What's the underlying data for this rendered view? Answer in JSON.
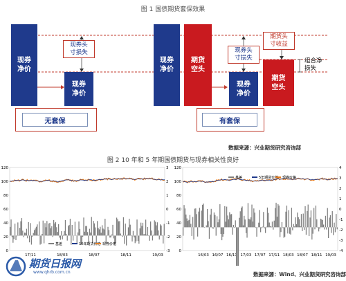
{
  "fig1": {
    "title": "图 1  国债期货套保效果",
    "boxes": {
      "spot_net_left": "现券\n净价",
      "spot_net_left_small": "现券\n净价",
      "spot_net_right": "现券\n净价",
      "futures_short": "期货\n空头",
      "spot_net_right_small": "现券\n净价",
      "futures_short_small": "期货\n空头"
    },
    "labels": {
      "loss_left": "现券头\n寸损失",
      "loss_right": "现券头\n寸损失",
      "gain": "期货头\n寸收益",
      "portfolio_loss": "组合净\n损失"
    },
    "frames": {
      "no_hedge": "无套保",
      "with_hedge": "有套保"
    },
    "source": "数据来源：兴业期货研究咨询部"
  },
  "fig2": {
    "title": "图 2  10 年和 5 年期国债期货与现券相关性良好",
    "source": "数据来源：Wind、兴业期货研究咨询部",
    "left": {
      "y_left_ticks": [
        "120",
        "100",
        "80",
        "60",
        "40",
        "20",
        "0"
      ],
      "y_right_ticks": [
        "3",
        "2",
        "1",
        "0",
        "-1",
        "-2",
        "-3"
      ],
      "x_ticks": [
        "17/11",
        "18/03",
        "18/07",
        "18/11",
        "19/03"
      ],
      "legend": [
        "基差",
        "10年期货价格",
        "现券价格"
      ]
    },
    "right": {
      "y_left_ticks": [
        "120",
        "100",
        "80",
        "60",
        "40",
        "20",
        "0"
      ],
      "y_right_ticks": [
        "4",
        "3",
        "2",
        "1",
        "0",
        "-1",
        "-2",
        "-3",
        "-4"
      ],
      "x_ticks": [
        "16/03",
        "16/07",
        "16/11",
        "17/03",
        "17/07",
        "17/11",
        "18/03",
        "18/07",
        "18/11",
        "19/03"
      ],
      "legend": [
        "基差",
        "5年期货价格",
        "现券价格"
      ]
    },
    "colors": {
      "basis": "#7f7f7f",
      "futures": "#1f3a8c",
      "spot": "#e67e22"
    }
  },
  "watermark": {
    "brand": "期货日报网",
    "url": "www.qhrb.com.cn"
  }
}
